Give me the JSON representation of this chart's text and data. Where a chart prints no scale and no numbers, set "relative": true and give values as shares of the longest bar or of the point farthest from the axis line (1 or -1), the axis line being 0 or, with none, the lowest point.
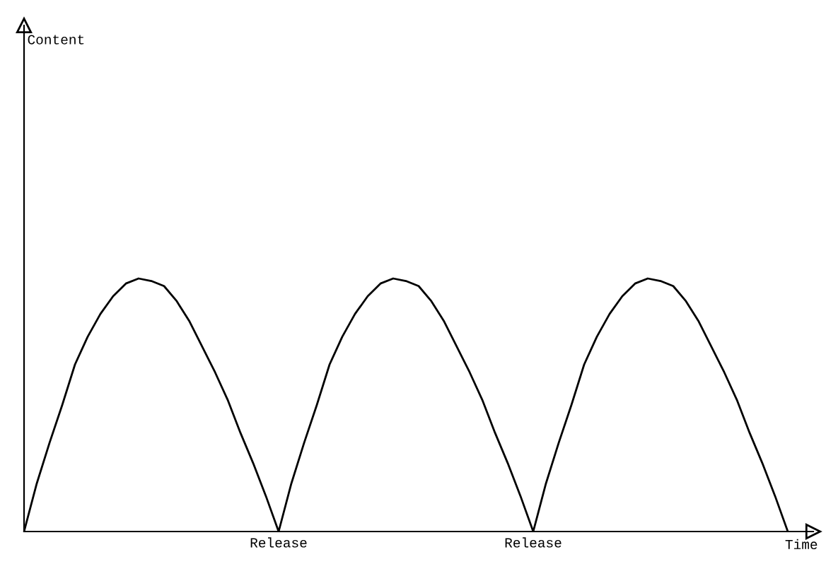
{
  "chart_data": {
    "type": "line",
    "relative": true,
    "xlabel": "Time",
    "annotations": [
      "Content"
    ],
    "color": "#000000",
    "marker": "none",
    "grid": false,
    "legend": false,
    "categories": [
      null,
      null,
      null,
      null,
      null,
      null,
      null,
      null,
      null,
      null,
      null,
      null,
      null,
      null,
      null,
      null,
      null,
      null,
      null,
      null,
      "Release",
      null,
      null,
      null,
      null,
      null,
      null,
      null,
      null,
      null,
      null,
      null,
      null,
      null,
      null,
      null,
      null,
      null,
      null,
      null,
      "Release",
      null,
      null,
      null,
      null,
      null,
      null,
      null,
      null,
      null,
      null,
      null,
      null,
      null,
      null,
      null,
      null,
      null,
      null,
      null,
      null
    ],
    "values": [
      0,
      0.19,
      0.35,
      0.5,
      0.66,
      0.77,
      0.86,
      0.93,
      0.98,
      1,
      0.99,
      0.97,
      0.91,
      0.83,
      0.73,
      0.63,
      0.52,
      0.39,
      0.27,
      0.14,
      0,
      0.19,
      0.35,
      0.5,
      0.66,
      0.77,
      0.86,
      0.93,
      0.98,
      1,
      0.99,
      0.97,
      0.91,
      0.83,
      0.73,
      0.63,
      0.52,
      0.39,
      0.27,
      0.14,
      0,
      0.19,
      0.35,
      0.5,
      0.66,
      0.77,
      0.86,
      0.93,
      0.98,
      1,
      0.99,
      0.97,
      0.91,
      0.83,
      0.73,
      0.63,
      0.52,
      0.39,
      0.27,
      0.14,
      0
    ]
  }
}
